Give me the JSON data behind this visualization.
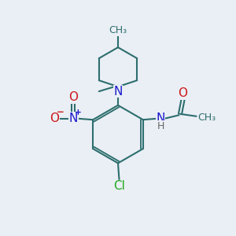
{
  "background_color": "#eaeff5",
  "bond_color": "#2d6e6e",
  "bond_width": 1.5,
  "atom_colors": {
    "N": "#1a1acc",
    "O": "#cc1a1a",
    "Cl": "#22aa22",
    "H": "#666666",
    "C": "#2d6e6e"
  },
  "font_size_atoms": 11,
  "font_size_small": 9,
  "font_size_charge": 7.5,
  "figsize": [
    3.0,
    3.0
  ],
  "dpi": 100
}
